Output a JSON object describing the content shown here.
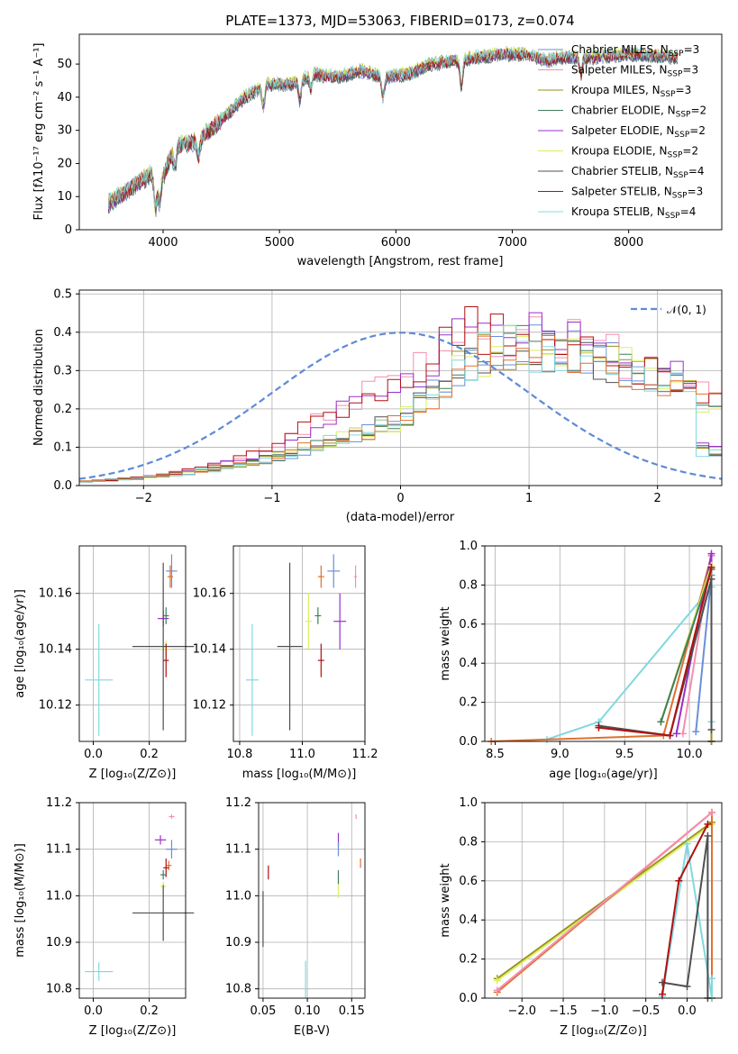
{
  "chart_data": [
    {
      "type": "line",
      "title": "PLATE=1373, MJD=53063, FIBERID=0173, z=0.074",
      "xlabel": "wavelength [Angstrom, rest frame]",
      "ylabel": "Flux [fλ10⁻¹⁷ erg cm⁻² s⁻¹ A⁻¹]",
      "xlim": [
        3280,
        8800
      ],
      "ylim": [
        0,
        59
      ],
      "xticks": [
        "4000",
        "5000",
        "6000",
        "7000",
        "8000"
      ],
      "yticks": [
        "0",
        "10",
        "20",
        "30",
        "40",
        "50"
      ],
      "legend_position": "upper right",
      "series": [
        {
          "name": "Chabrier MILES, N_SSP=3",
          "color": "#6a8fd8"
        },
        {
          "name": "Salpeter MILES, N_SSP=3",
          "color": "#f48fb1"
        },
        {
          "name": "Kroupa MILES, N_SSP=3",
          "color": "#9a8f1e"
        },
        {
          "name": "Chabrier ELODIE, N_SSP=2",
          "color": "#3f7f5f"
        },
        {
          "name": "Salpeter ELODIE, N_SSP=2",
          "color": "#9b30c8"
        },
        {
          "name": "Kroupa ELODIE, N_SSP=2",
          "color": "#d8f060"
        },
        {
          "name": "Chabrier STELIB, N_SSP=4",
          "color": "#505050"
        },
        {
          "name": "Salpeter STELIB, N_SSP=3",
          "color": "#b01010"
        },
        {
          "name": "Kroupa STELIB, N_SSP=4",
          "color": "#80d8e0"
        }
      ],
      "continuum_points": [
        [
          3530,
          8
        ],
        [
          3700,
          12
        ],
        [
          3900,
          17
        ],
        [
          4000,
          16
        ],
        [
          4100,
          25
        ],
        [
          4300,
          27
        ],
        [
          4500,
          33
        ],
        [
          4700,
          40
        ],
        [
          4900,
          44
        ],
        [
          5100,
          44
        ],
        [
          5300,
          47
        ],
        [
          5500,
          46
        ],
        [
          5700,
          48
        ],
        [
          5900,
          46
        ],
        [
          6100,
          47
        ],
        [
          6300,
          50
        ],
        [
          6500,
          51
        ],
        [
          6700,
          52
        ],
        [
          6900,
          53
        ],
        [
          7100,
          53
        ],
        [
          7300,
          51
        ],
        [
          7400,
          52
        ],
        [
          7700,
          52
        ],
        [
          8000,
          53
        ],
        [
          8400,
          52
        ]
      ],
      "dips": [
        [
          3934,
          10
        ],
        [
          3969,
          8
        ],
        [
          4102,
          6
        ],
        [
          4304,
          5
        ],
        [
          4861,
          6
        ],
        [
          5175,
          6
        ],
        [
          5270,
          4
        ],
        [
          5890,
          6
        ],
        [
          6563,
          8
        ],
        [
          7590,
          5
        ]
      ]
    },
    {
      "type": "step",
      "xlabel": "(data-model)/error",
      "ylabel": "Normed distribution",
      "xlim": [
        -2.5,
        2.5
      ],
      "ylim": [
        0,
        0.51
      ],
      "xticks": [
        "−2",
        "−1",
        "0",
        "1",
        "2"
      ],
      "yticks": [
        "0.0",
        "0.1",
        "0.2",
        "0.3",
        "0.4",
        "0.5"
      ],
      "legend": "𝒩(0, 1)",
      "gaussian": {
        "mean": 0,
        "sigma": 1,
        "color": "#5f8ad8"
      },
      "bin_width": 0.1,
      "envelope": [
        [
          -2.5,
          0.01
        ],
        [
          -2.0,
          0.02
        ],
        [
          -1.5,
          0.04
        ],
        [
          -1.0,
          0.07
        ],
        [
          -0.5,
          0.12
        ],
        [
          0.0,
          0.17
        ],
        [
          0.3,
          0.25
        ],
        [
          0.5,
          0.32
        ],
        [
          0.8,
          0.36
        ],
        [
          1.0,
          0.36
        ],
        [
          1.5,
          0.34
        ],
        [
          2.0,
          0.28
        ],
        [
          2.5,
          0.2
        ]
      ],
      "envelope_hi": [
        [
          -2.5,
          0.01
        ],
        [
          -2.0,
          0.02
        ],
        [
          -1.5,
          0.05
        ],
        [
          -1.0,
          0.09
        ],
        [
          -0.5,
          0.2
        ],
        [
          -0.1,
          0.27
        ],
        [
          0.2,
          0.32
        ],
        [
          0.4,
          0.4
        ],
        [
          0.8,
          0.4
        ],
        [
          1.2,
          0.38
        ],
        [
          1.6,
          0.35
        ],
        [
          2.0,
          0.3
        ],
        [
          2.5,
          0.22
        ]
      ]
    },
    {
      "type": "scatter",
      "xlabel": "Z [log₁₀(Z/Z⊙)]",
      "ylabel": "age  [log₁₀(age/yr)]",
      "xlim": [
        -0.05,
        0.33
      ],
      "ylim": [
        10.107,
        10.177
      ],
      "xticks": [
        "0.0",
        "0.2"
      ],
      "yticks": [
        "10.12",
        "10.14",
        "10.16"
      ],
      "points": [
        {
          "x": 0.28,
          "y": 10.168,
          "ex": 0.02,
          "ey": 0.006,
          "c": "#6a8fd8"
        },
        {
          "x": 0.275,
          "y": 10.166,
          "ex": 0.01,
          "ey": 0.004,
          "c": "#e07030"
        },
        {
          "x": 0.25,
          "y": 10.151,
          "ex": 0.02,
          "ey": 0.003,
          "c": "#9b30c8"
        },
        {
          "x": 0.26,
          "y": 10.152,
          "ex": 0.01,
          "ey": 0.003,
          "c": "#3f7f5f"
        },
        {
          "x": 0.26,
          "y": 10.14,
          "ex": 0.02,
          "ey": 0.003,
          "c": "#d8f060"
        },
        {
          "x": 0.25,
          "y": 10.141,
          "ex": 0.11,
          "ey": 0.03,
          "c": "#505050"
        },
        {
          "x": 0.26,
          "y": 10.136,
          "ex": 0.01,
          "ey": 0.006,
          "c": "#b01010"
        },
        {
          "x": 0.02,
          "y": 10.129,
          "ex": 0.05,
          "ey": 0.02,
          "c": "#80d8e0"
        }
      ]
    },
    {
      "type": "scatter",
      "xlabel": "mass [log₁₀(M/M⊙)]",
      "ylabel": "",
      "xlim": [
        10.78,
        11.2
      ],
      "ylim": [
        10.107,
        10.177
      ],
      "xticks": [
        "10.8",
        "11.0",
        "11.2"
      ],
      "yticks": [
        "10.12",
        "10.14",
        "10.16"
      ],
      "points": [
        {
          "x": 11.1,
          "y": 10.168,
          "ex": 0.02,
          "ey": 0.006,
          "c": "#6a8fd8"
        },
        {
          "x": 11.17,
          "y": 10.166,
          "ex": 0.005,
          "ey": 0.004,
          "c": "#f48fb1"
        },
        {
          "x": 11.06,
          "y": 10.166,
          "ex": 0.01,
          "ey": 0.004,
          "c": "#e07030"
        },
        {
          "x": 11.12,
          "y": 10.15,
          "ex": 0.02,
          "ey": 0.01,
          "c": "#9b30c8"
        },
        {
          "x": 11.02,
          "y": 10.15,
          "ex": 0.01,
          "ey": 0.01,
          "c": "#d8f060"
        },
        {
          "x": 11.05,
          "y": 10.152,
          "ex": 0.01,
          "ey": 0.003,
          "c": "#3f7f5f"
        },
        {
          "x": 10.96,
          "y": 10.141,
          "ex": 0.04,
          "ey": 0.03,
          "c": "#505050"
        },
        {
          "x": 11.06,
          "y": 10.136,
          "ex": 0.01,
          "ey": 0.006,
          "c": "#b01010"
        },
        {
          "x": 10.84,
          "y": 10.129,
          "ex": 0.02,
          "ey": 0.02,
          "c": "#80d8e0"
        }
      ]
    },
    {
      "type": "line",
      "xlabel": "age  [log₁₀(age/yr)]",
      "ylabel": "mass weight",
      "xlim": [
        8.42,
        10.25
      ],
      "ylim": [
        0,
        1.0
      ],
      "xticks": [
        "8.5",
        "9.0",
        "9.5",
        "10.0"
      ],
      "yticks": [
        "0.0",
        "0.2",
        "0.4",
        "0.6",
        "0.8",
        "1.0"
      ],
      "series": [
        {
          "c": "#80d8e0",
          "x": [
            8.9,
            9.3,
            10.17,
            10.17
          ],
          "y": [
            0.01,
            0.1,
            0.79,
            0.1
          ]
        },
        {
          "c": "#e07030",
          "x": [
            8.47,
            9.8,
            10.17,
            10.17
          ],
          "y": [
            0.0,
            0.03,
            0.95,
            0.0
          ]
        },
        {
          "c": "#f48fb1",
          "x": [
            9.95,
            10.17,
            10.17
          ],
          "y": [
            0.04,
            0.95,
            0.0
          ]
        },
        {
          "c": "#9b30c8",
          "x": [
            9.9,
            10.17,
            10.17
          ],
          "y": [
            0.04,
            0.96,
            0.0
          ]
        },
        {
          "c": "#6a8fd8",
          "x": [
            10.05,
            10.17,
            10.17
          ],
          "y": [
            0.05,
            0.85,
            0.0
          ]
        },
        {
          "c": "#9a8f1e",
          "x": [
            9.78,
            10.17,
            10.17
          ],
          "y": [
            0.1,
            0.9,
            0.0
          ]
        },
        {
          "c": "#d8f060",
          "x": [
            9.78,
            10.17
          ],
          "y": [
            0.1,
            0.9
          ]
        },
        {
          "c": "#3f7f5f",
          "x": [
            9.78,
            10.17
          ],
          "y": [
            0.1,
            0.88
          ]
        },
        {
          "c": "#505050",
          "x": [
            9.3,
            9.85,
            10.17,
            10.17
          ],
          "y": [
            0.08,
            0.03,
            0.83,
            0.06
          ]
        },
        {
          "c": "#b01010",
          "x": [
            9.3,
            9.85,
            10.17
          ],
          "y": [
            0.07,
            0.03,
            0.89
          ]
        }
      ]
    },
    {
      "type": "scatter",
      "xlabel": "Z [log₁₀(Z/Z⊙)]",
      "ylabel": "mass [log₁₀(M/M⊙)]",
      "xlim": [
        -0.05,
        0.33
      ],
      "ylim": [
        10.78,
        11.2
      ],
      "xticks": [
        "0.0",
        "0.2"
      ],
      "yticks": [
        "10.8",
        "10.9",
        "11.0",
        "11.1",
        "11.2"
      ],
      "points": [
        {
          "x": 0.28,
          "y": 11.17,
          "ex": 0.01,
          "ey": 0.005,
          "c": "#f48fb1"
        },
        {
          "x": 0.24,
          "y": 11.12,
          "ex": 0.02,
          "ey": 0.01,
          "c": "#9b30c8"
        },
        {
          "x": 0.28,
          "y": 11.1,
          "ex": 0.02,
          "ey": 0.02,
          "c": "#6a8fd8"
        },
        {
          "x": 0.27,
          "y": 11.065,
          "ex": 0.01,
          "ey": 0.01,
          "c": "#e07030"
        },
        {
          "x": 0.26,
          "y": 11.06,
          "ex": 0.01,
          "ey": 0.02,
          "c": "#b01010"
        },
        {
          "x": 0.25,
          "y": 11.045,
          "ex": 0.01,
          "ey": 0.01,
          "c": "#3f7f5f"
        },
        {
          "x": 0.25,
          "y": 11.02,
          "ex": 0.01,
          "ey": 0.01,
          "c": "#d8f060"
        },
        {
          "x": 0.25,
          "y": 10.963,
          "ex": 0.11,
          "ey": 0.06,
          "c": "#505050"
        },
        {
          "x": 0.02,
          "y": 10.837,
          "ex": 0.05,
          "ey": 0.02,
          "c": "#80d8e0"
        }
      ]
    },
    {
      "type": "scatter",
      "xlabel": "E(B-V)",
      "ylabel": "",
      "xlim": [
        0.045,
        0.165
      ],
      "ylim": [
        10.78,
        11.2
      ],
      "xticks": [
        "0.05",
        "0.10",
        "0.15"
      ],
      "yticks": [
        "10.8",
        "10.9",
        "11.0",
        "11.1",
        "11.2"
      ],
      "points": [
        {
          "x": 0.155,
          "y": 11.17,
          "ex": 0,
          "ey": 0.005,
          "c": "#f48fb1"
        },
        {
          "x": 0.135,
          "y": 11.12,
          "ex": 0,
          "ey": 0.015,
          "c": "#9b30c8"
        },
        {
          "x": 0.135,
          "y": 11.1,
          "ex": 0,
          "ey": 0.015,
          "c": "#6a8fd8"
        },
        {
          "x": 0.16,
          "y": 11.07,
          "ex": 0,
          "ey": 0.01,
          "c": "#e07030"
        },
        {
          "x": 0.056,
          "y": 11.05,
          "ex": 0,
          "ey": 0.015,
          "c": "#b01010"
        },
        {
          "x": 0.135,
          "y": 11.04,
          "ex": 0,
          "ey": 0.015,
          "c": "#3f7f5f"
        },
        {
          "x": 0.135,
          "y": 11.01,
          "ex": 0,
          "ey": 0.015,
          "c": "#d8f060"
        },
        {
          "x": 0.05,
          "y": 10.95,
          "ex": 0,
          "ey": 0.06,
          "c": "#505050"
        },
        {
          "x": 0.098,
          "y": 10.82,
          "ex": 0,
          "ey": 0.04,
          "c": "#80d8e0"
        }
      ]
    },
    {
      "type": "line",
      "xlabel": "Z [log₁₀(Z/Z⊙)]",
      "ylabel": "mass weight",
      "xlim": [
        -2.45,
        0.42
      ],
      "ylim": [
        0,
        1.0
      ],
      "xticks": [
        "−2.0",
        "−1.5",
        "−1.0",
        "−0.5",
        "0.0"
      ],
      "yticks": [
        "0.0",
        "0.2",
        "0.4",
        "0.6",
        "0.8",
        "1.0"
      ],
      "series": [
        {
          "c": "#9a8f1e",
          "x": [
            -2.3,
            0.3,
            0.3
          ],
          "y": [
            0.1,
            0.9,
            0.0
          ]
        },
        {
          "c": "#d8f060",
          "x": [
            -2.3,
            0.3
          ],
          "y": [
            0.09,
            0.89
          ]
        },
        {
          "c": "#e07030",
          "x": [
            -2.3,
            0.3,
            0.3
          ],
          "y": [
            0.03,
            0.95,
            0.0
          ]
        },
        {
          "c": "#f48fb1",
          "x": [
            -2.3,
            0.3
          ],
          "y": [
            0.04,
            0.95
          ]
        },
        {
          "c": "#80d8e0",
          "x": [
            -0.3,
            0.0,
            0.3,
            0.3
          ],
          "y": [
            0.01,
            0.79,
            0.0,
            0.1
          ]
        },
        {
          "c": "#505050",
          "x": [
            -0.3,
            0.0,
            0.25,
            0.25
          ],
          "y": [
            0.08,
            0.06,
            0.83,
            0.0
          ]
        },
        {
          "c": "#b01010",
          "x": [
            -0.3,
            -0.1,
            0.25
          ],
          "y": [
            0.02,
            0.6,
            0.89
          ]
        }
      ]
    }
  ]
}
